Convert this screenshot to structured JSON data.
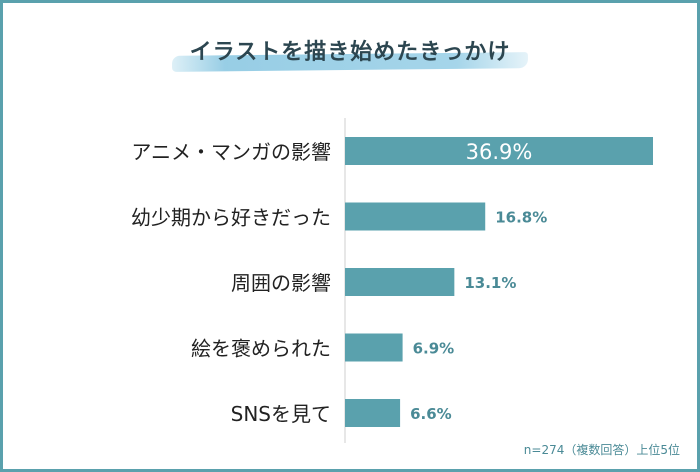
{
  "title": "イラストを描き始めたきっかけ",
  "footnote": "n=274（複数回答）上位5位",
  "colors": {
    "bar": "#5aa1ad",
    "label_inside": "#ffffff",
    "label_outside": "#4a8a96",
    "category": "#222222",
    "frame": "#5aa1ad"
  },
  "chart_data": {
    "type": "bar",
    "orientation": "horizontal",
    "categories": [
      "アニメ・マンガの影響",
      "幼少期から好きだった",
      "周囲の影響",
      "絵を褒められた",
      "SNSを見て"
    ],
    "values": [
      36.9,
      16.8,
      13.1,
      6.9,
      6.6
    ],
    "value_labels": [
      "36.9%",
      "16.8%",
      "13.1%",
      "6.9%",
      "6.6%"
    ],
    "unit": "%",
    "xlim": [
      0,
      40
    ],
    "grid": false,
    "legend": "none"
  }
}
